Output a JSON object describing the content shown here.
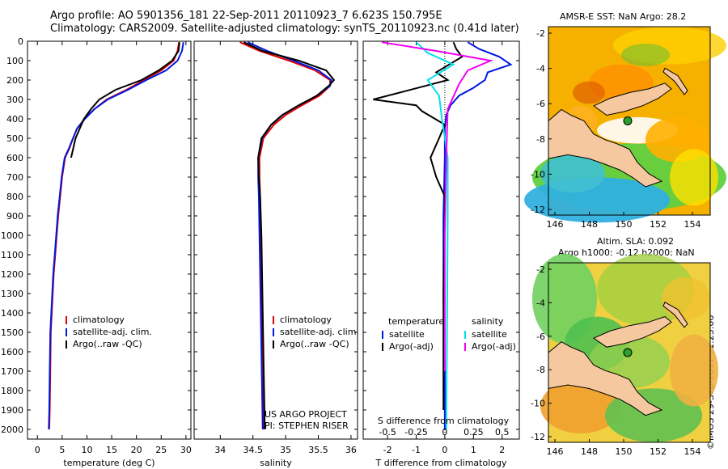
{
  "header": {
    "line1": "Argo profile: AO 5901356_181 22-Sep-2011 20110923_7 6.623S 150.795E",
    "line2": "Climatology: CARS2009. Satellite-adjusted climatology: synTS_20110923.nc (0.41d later)"
  },
  "credit": "©IMOS 29-Sep-2011 11:25:06",
  "colors": {
    "climatology": "#e00000",
    "satellite": "#0018e0",
    "argo": "#000000",
    "sat_salinity": "#00e0f0",
    "argo_salinity": "#f000f0"
  },
  "chart_data": [
    {
      "type": "line",
      "id": "temperature",
      "xlabel": "temperature (deg C)",
      "ylabel": "",
      "xlim": [
        -2,
        31
      ],
      "ylim": [
        0,
        2050
      ],
      "xticks": [
        0,
        5,
        10,
        15,
        20,
        25,
        30
      ],
      "yticks": [
        0,
        100,
        200,
        300,
        400,
        500,
        600,
        700,
        800,
        900,
        1000,
        1100,
        1200,
        1300,
        1400,
        1500,
        1600,
        1700,
        1800,
        1900,
        2000
      ],
      "legend": [
        "climatology",
        "satellite-adj. clim.",
        "Argo(..raw -QC)"
      ],
      "series": [
        {
          "name": "climatology",
          "color_key": "climatology",
          "x": [
            28.6,
            28.3,
            27.5,
            25,
            21.5,
            18,
            14,
            11.5,
            9.5,
            8,
            7.2,
            6.5,
            5.6,
            5,
            4.6,
            4.2,
            3.9,
            3.6,
            3.3,
            3.1,
            2.9,
            2.7,
            2.6,
            2.5,
            2.4
          ],
          "y": [
            5,
            50,
            100,
            150,
            200,
            250,
            300,
            350,
            400,
            450,
            500,
            550,
            600,
            700,
            800,
            900,
            1000,
            1100,
            1200,
            1300,
            1400,
            1500,
            1700,
            1900,
            2000
          ]
        },
        {
          "name": "satellite-adj. clim.",
          "color_key": "satellite",
          "x": [
            29.5,
            29.2,
            28.3,
            26,
            22,
            18.3,
            14.2,
            11.5,
            9.6,
            8,
            7.2,
            6.4,
            5.5,
            4.9,
            4.5,
            4.1,
            3.8,
            3.5,
            3.2,
            3,
            2.8,
            2.6,
            2.5,
            2.4,
            2.3
          ],
          "y": [
            5,
            50,
            100,
            150,
            200,
            250,
            300,
            350,
            400,
            450,
            500,
            550,
            600,
            700,
            800,
            900,
            1000,
            1100,
            1200,
            1300,
            1400,
            1500,
            1700,
            1900,
            2000
          ]
        },
        {
          "name": "Argo(..raw -QC)",
          "color_key": "argo",
          "x": [
            28.7,
            28.5,
            27.2,
            24.5,
            21,
            15.8,
            12.5,
            10.8,
            9.4,
            7.7,
            6.8
          ],
          "y": [
            5,
            50,
            100,
            150,
            200,
            250,
            300,
            350,
            400,
            500,
            600
          ]
        }
      ]
    },
    {
      "type": "line",
      "id": "salinity",
      "xlabel": "salinity",
      "ylabel": "",
      "xlim": [
        33.6,
        36.1
      ],
      "ylim": [
        0,
        2050
      ],
      "xticks": [
        34,
        34.5,
        35,
        35.5,
        36
      ],
      "legend": [
        "climatology",
        "satellite-adj. clim.",
        "Argo(..raw -QC)"
      ],
      "series": [
        {
          "name": "climatology",
          "color_key": "climatology",
          "x": [
            34.3,
            34.6,
            35.05,
            35.45,
            35.68,
            35.68,
            35.52,
            35.25,
            35,
            34.82,
            34.66,
            34.6,
            34.6,
            34.61,
            34.62,
            34.63,
            34.64,
            34.65,
            34.66,
            34.67
          ],
          "y": [
            5,
            50,
            100,
            150,
            200,
            230,
            280,
            330,
            380,
            430,
            500,
            600,
            700,
            800,
            1000,
            1200,
            1400,
            1600,
            1800,
            2000
          ]
        },
        {
          "name": "satellite-adj. clim.",
          "color_key": "satellite",
          "x": [
            34.42,
            34.72,
            35.12,
            35.5,
            35.7,
            35.68,
            35.48,
            35.2,
            34.95,
            34.78,
            34.64,
            34.58,
            34.58,
            34.59,
            34.6,
            34.61,
            34.62,
            34.63,
            34.64,
            34.65
          ],
          "y": [
            5,
            50,
            100,
            150,
            200,
            230,
            280,
            330,
            380,
            430,
            500,
            600,
            700,
            800,
            1000,
            1200,
            1400,
            1600,
            1800,
            2000
          ]
        },
        {
          "name": "Argo(..raw -QC)",
          "color_key": "argo",
          "x": [
            34.36,
            34.65,
            35.2,
            35.62,
            35.74,
            35.66,
            35.48,
            35.2,
            34.95,
            34.78,
            34.63,
            34.58,
            34.59,
            34.61,
            34.63,
            34.64,
            34.65,
            34.66,
            34.67,
            34.68
          ],
          "y": [
            5,
            50,
            100,
            150,
            200,
            230,
            280,
            330,
            380,
            430,
            500,
            600,
            700,
            800,
            1000,
            1200,
            1400,
            1600,
            1800,
            2000
          ]
        }
      ],
      "annotation": {
        "line1": "US ARGO PROJECT",
        "line2": "PI: STEPHEN RISER"
      }
    },
    {
      "type": "line",
      "id": "difference",
      "xlabel": "T difference from climatology",
      "xlabel_top": "S difference from climatology",
      "xlim": [
        -2.85,
        2.6
      ],
      "ylim": [
        0,
        2050
      ],
      "xticks": [
        -2,
        -1,
        0,
        1,
        2
      ],
      "s_ticks_labels": [
        "-0.5",
        "-0.25",
        "0",
        "0.25",
        "0.5"
      ],
      "s_ticks_t_positions": [
        -2,
        -1,
        0,
        1,
        2
      ],
      "legend_left": {
        "title": "temperature",
        "items": [
          "satellite",
          "Argo(-adj)"
        ]
      },
      "legend_right": {
        "title": "salinity",
        "items": [
          "satellite",
          "Argo(-adj)"
        ]
      },
      "series": [
        {
          "name": "temperature satellite",
          "color_key": "satellite",
          "x": [
            0.8,
            1.2,
            1.9,
            2.3,
            1.5,
            1.4,
            1.0,
            0.5,
            0.2,
            0.05,
            0.0,
            0.0,
            -0.05,
            -0.05,
            0.0,
            0.0
          ],
          "y": [
            5,
            40,
            80,
            120,
            160,
            200,
            240,
            280,
            330,
            380,
            450,
            600,
            900,
            1300,
            1700,
            2000
          ]
        },
        {
          "name": "temperature Argo",
          "color_key": "argo",
          "x": [
            0.3,
            0.4,
            0.6,
            -0.3,
            0.1,
            -2.5,
            -1.0,
            -0.8,
            0.0,
            -0.2,
            -0.5,
            -0.3,
            0.0,
            0.0,
            -0.05,
            -0.05
          ],
          "y": [
            5,
            40,
            80,
            160,
            200,
            300,
            330,
            360,
            430,
            500,
            600,
            700,
            800,
            900,
            1300,
            1900
          ]
        },
        {
          "name": "salinity satellite",
          "color_key": "sat_salinity",
          "x": [
            -1.0,
            -0.6,
            0.3,
            -0.6,
            -0.2,
            -0.1,
            0.1,
            0.1,
            0.08,
            0.05
          ],
          "y": [
            5,
            60,
            120,
            200,
            280,
            400,
            600,
            900,
            1400,
            2000
          ]
        },
        {
          "name": "salinity Argo",
          "color_key": "argo_salinity",
          "x": [
            -2.2,
            -0.3,
            1.6,
            0.8,
            0.5,
            0.1,
            0.05,
            0.0,
            0.0
          ],
          "y": [
            5,
            50,
            100,
            150,
            220,
            350,
            600,
            1000,
            1700
          ]
        }
      ]
    }
  ],
  "maps": [
    {
      "id": "sst",
      "title": "AMSR-E SST: NaN Argo: 28.2",
      "xticks": [
        "146",
        "148",
        "150",
        "152",
        "154"
      ],
      "yticks": [
        "-2",
        "-4",
        "-6",
        "-8",
        "-10",
        "-12"
      ]
    },
    {
      "id": "sla",
      "title": "Altim. SLA: 0.092",
      "subtitle": "Argo h1000: -0.12 h2000: NaN",
      "xticks": [
        "146",
        "148",
        "150",
        "152",
        "154"
      ],
      "yticks": [
        "-2",
        "-4",
        "-6",
        "-8",
        "-10",
        "-12"
      ]
    }
  ]
}
